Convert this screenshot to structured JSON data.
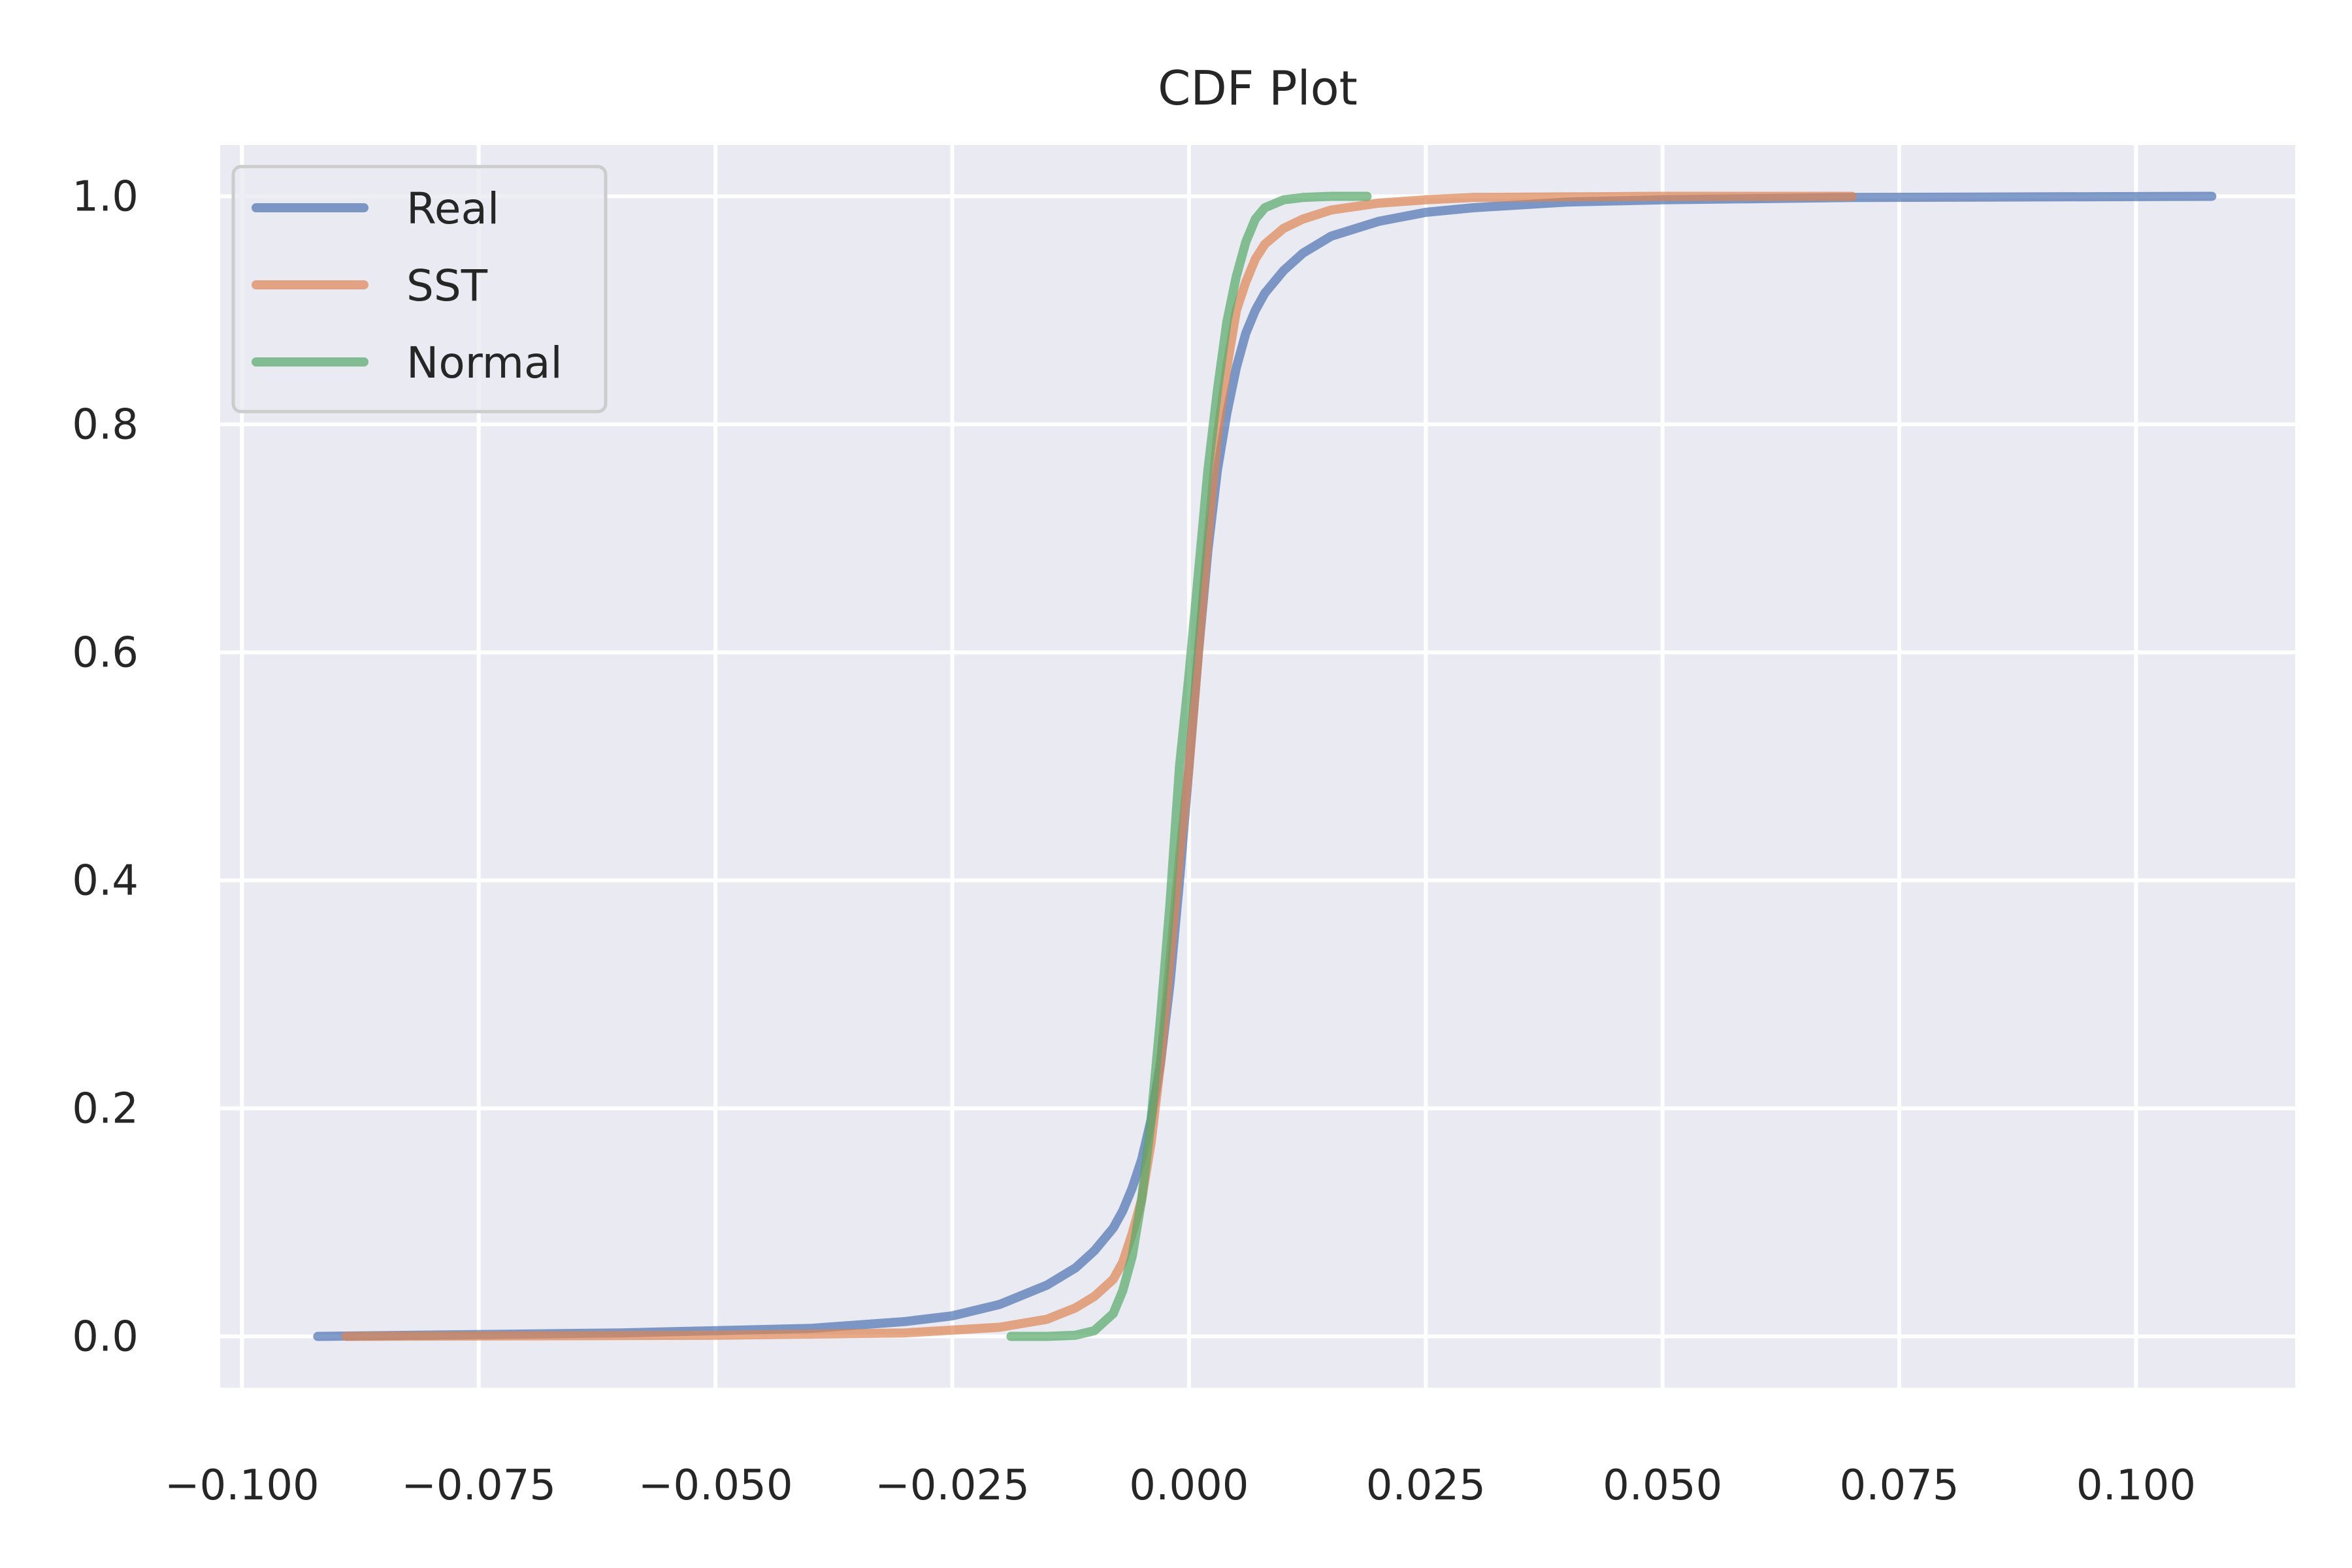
{
  "chart_data": {
    "type": "line",
    "title": "CDF Plot",
    "xlabel": "",
    "ylabel": "",
    "xlim": [
      -0.1023,
      0.1168
    ],
    "ylim": [
      -0.045,
      1.045
    ],
    "x_ticks": [
      -0.1,
      -0.075,
      -0.05,
      -0.025,
      0.0,
      0.025,
      0.05,
      0.075,
      0.1
    ],
    "x_tick_labels": [
      "−0.100",
      "−0.075",
      "−0.050",
      "−0.025",
      "0.000",
      "0.025",
      "0.050",
      "0.075",
      "0.100"
    ],
    "y_ticks": [
      0.0,
      0.2,
      0.4,
      0.6,
      0.8,
      1.0
    ],
    "y_tick_labels": [
      "0.0",
      "0.2",
      "0.4",
      "0.6",
      "0.8",
      "1.0"
    ],
    "grid": true,
    "legend_position": "top-left",
    "background_color": "#eaeaf2",
    "grid_color": "#ffffff",
    "series": [
      {
        "name": "Real",
        "color": "#4c72b0",
        "x": [
          -0.092,
          -0.06,
          -0.04,
          -0.03,
          -0.025,
          -0.02,
          -0.015,
          -0.012,
          -0.01,
          -0.008,
          -0.007,
          -0.006,
          -0.005,
          -0.004,
          -0.003,
          -0.002,
          -0.001,
          0.0,
          0.001,
          0.002,
          0.003,
          0.004,
          0.005,
          0.006,
          0.007,
          0.008,
          0.01,
          0.012,
          0.015,
          0.02,
          0.025,
          0.03,
          0.04,
          0.05,
          0.07,
          0.108
        ],
        "y": [
          0.0,
          0.003,
          0.007,
          0.013,
          0.018,
          0.028,
          0.045,
          0.06,
          0.075,
          0.095,
          0.11,
          0.13,
          0.155,
          0.19,
          0.24,
          0.31,
          0.4,
          0.5,
          0.6,
          0.69,
          0.76,
          0.81,
          0.85,
          0.88,
          0.9,
          0.915,
          0.935,
          0.95,
          0.965,
          0.978,
          0.986,
          0.99,
          0.995,
          0.997,
          0.999,
          1.0
        ]
      },
      {
        "name": "SST",
        "color": "#dd8452",
        "x": [
          -0.089,
          -0.05,
          -0.03,
          -0.02,
          -0.015,
          -0.012,
          -0.01,
          -0.008,
          -0.007,
          -0.006,
          -0.005,
          -0.004,
          -0.003,
          -0.002,
          -0.001,
          0.0,
          0.001,
          0.002,
          0.003,
          0.004,
          0.005,
          0.006,
          0.007,
          0.008,
          0.01,
          0.012,
          0.015,
          0.02,
          0.025,
          0.03,
          0.05,
          0.07
        ],
        "y": [
          0.0,
          0.001,
          0.003,
          0.008,
          0.015,
          0.025,
          0.035,
          0.05,
          0.065,
          0.09,
          0.12,
          0.17,
          0.24,
          0.33,
          0.42,
          0.5,
          0.6,
          0.7,
          0.79,
          0.85,
          0.9,
          0.925,
          0.945,
          0.958,
          0.972,
          0.98,
          0.988,
          0.994,
          0.997,
          0.999,
          1.0,
          1.0
        ]
      },
      {
        "name": "Normal",
        "color": "#55a868",
        "x": [
          -0.0188,
          -0.015,
          -0.012,
          -0.01,
          -0.008,
          -0.007,
          -0.006,
          -0.005,
          -0.004,
          -0.003,
          -0.002,
          -0.001,
          0.0,
          0.001,
          0.002,
          0.003,
          0.004,
          0.005,
          0.006,
          0.007,
          0.008,
          0.01,
          0.012,
          0.015,
          0.0188
        ],
        "y": [
          0.0,
          0.0,
          0.001,
          0.005,
          0.02,
          0.04,
          0.07,
          0.12,
          0.19,
          0.28,
          0.38,
          0.5,
          0.58,
          0.67,
          0.76,
          0.83,
          0.89,
          0.93,
          0.96,
          0.98,
          0.99,
          0.997,
          0.999,
          1.0,
          1.0
        ]
      }
    ]
  }
}
